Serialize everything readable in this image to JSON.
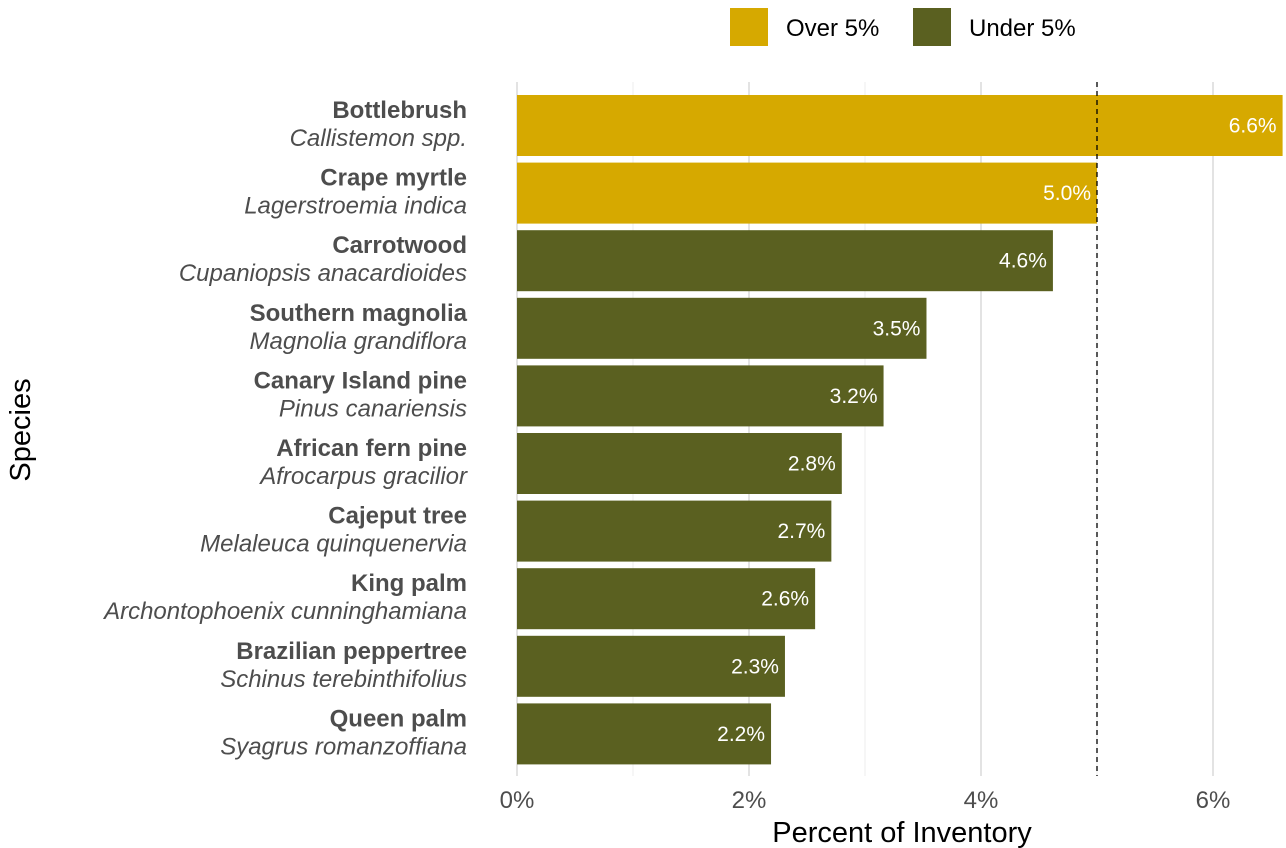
{
  "chart_data": {
    "type": "bar",
    "orientation": "horizontal",
    "xlabel": "Percent of Inventory",
    "ylabel": "Species",
    "xlim": [
      0,
      6.6
    ],
    "xticks": [
      0,
      2,
      4,
      6
    ],
    "xtick_labels": [
      "0%",
      "2%",
      "4%",
      "6%"
    ],
    "reference_line": {
      "x": 5,
      "style": "dashed"
    },
    "grid": "vertical",
    "legend": {
      "placement": "top-right",
      "entries": [
        {
          "label": "Over 5%",
          "color": "#d6a900"
        },
        {
          "label": "Under 5%",
          "color": "#5a6020"
        }
      ]
    },
    "categories": [
      {
        "common": "Bottlebrush",
        "scientific": "Callistemon spp.",
        "value": 6.6,
        "label": "6.6%",
        "group": "Over 5%"
      },
      {
        "common": "Crape myrtle",
        "scientific": "Lagerstroemia indica",
        "value": 5.0,
        "label": "5.0%",
        "group": "Over 5%"
      },
      {
        "common": "Carrotwood",
        "scientific": "Cupaniopsis anacardioides",
        "value": 4.62,
        "label": "4.6%",
        "group": "Under 5%"
      },
      {
        "common": "Southern magnolia",
        "scientific": "Magnolia grandiflora",
        "value": 3.53,
        "label": "3.5%",
        "group": "Under 5%"
      },
      {
        "common": "Canary Island pine",
        "scientific": "Pinus canariensis",
        "value": 3.16,
        "label": "3.2%",
        "group": "Under 5%"
      },
      {
        "common": "African fern pine",
        "scientific": "Afrocarpus gracilior",
        "value": 2.8,
        "label": "2.8%",
        "group": "Under 5%"
      },
      {
        "common": "Cajeput tree",
        "scientific": "Melaleuca quinquenervia",
        "value": 2.71,
        "label": "2.7%",
        "group": "Under 5%"
      },
      {
        "common": "King palm",
        "scientific": "Archontophoenix cunninghamiana",
        "value": 2.57,
        "label": "2.6%",
        "group": "Under 5%"
      },
      {
        "common": "Brazilian peppertree",
        "scientific": "Schinus terebinthifolius",
        "value": 2.31,
        "label": "2.3%",
        "group": "Under 5%"
      },
      {
        "common": "Queen palm",
        "scientific": "Syagrus romanzoffiana",
        "value": 2.19,
        "label": "2.2%",
        "group": "Under 5%"
      }
    ]
  }
}
